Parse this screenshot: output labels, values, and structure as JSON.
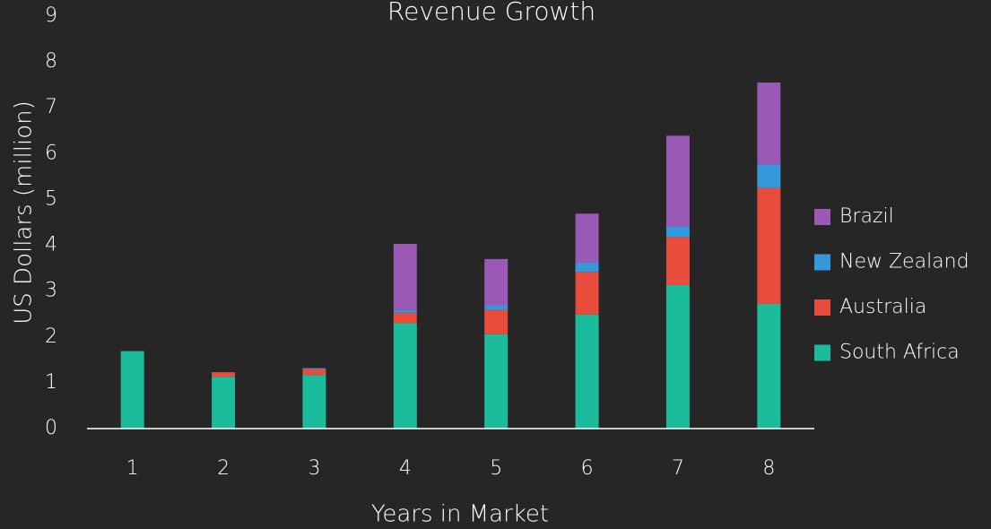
{
  "chart_data": {
    "type": "stacked_bar",
    "title": "Revenue Growth",
    "x_label": "Years in Market",
    "y_label": "US Dollars (million)",
    "categories": [
      "1",
      "2",
      "3",
      "4",
      "5",
      "6",
      "7",
      "8"
    ],
    "series": [
      {
        "name": "South Africa",
        "color": "#1abc9c",
        "values": [
          1.69,
          1.13,
          1.17,
          2.3,
          2.06,
          2.49,
          3.13,
          2.72
        ]
      },
      {
        "name": "Australia",
        "color": "#e74c3c",
        "values": [
          0,
          0.1,
          0.13,
          0.23,
          0.53,
          0.93,
          1.05,
          2.53
        ]
      },
      {
        "name": "New Zealand",
        "color": "#3498db",
        "values": [
          0,
          0,
          0.02,
          0.06,
          0.1,
          0.2,
          0.23,
          0.51
        ]
      },
      {
        "name": "Brazil",
        "color": "#9b59b6",
        "values": [
          0,
          0,
          0,
          1.44,
          1.01,
          1.07,
          1.98,
          1.79
        ]
      }
    ],
    "ylim": [
      0,
      9
    ],
    "yticks": [
      0,
      1,
      2,
      3,
      4,
      5,
      6,
      7,
      8,
      9
    ],
    "grid": false,
    "legend": "right"
  }
}
